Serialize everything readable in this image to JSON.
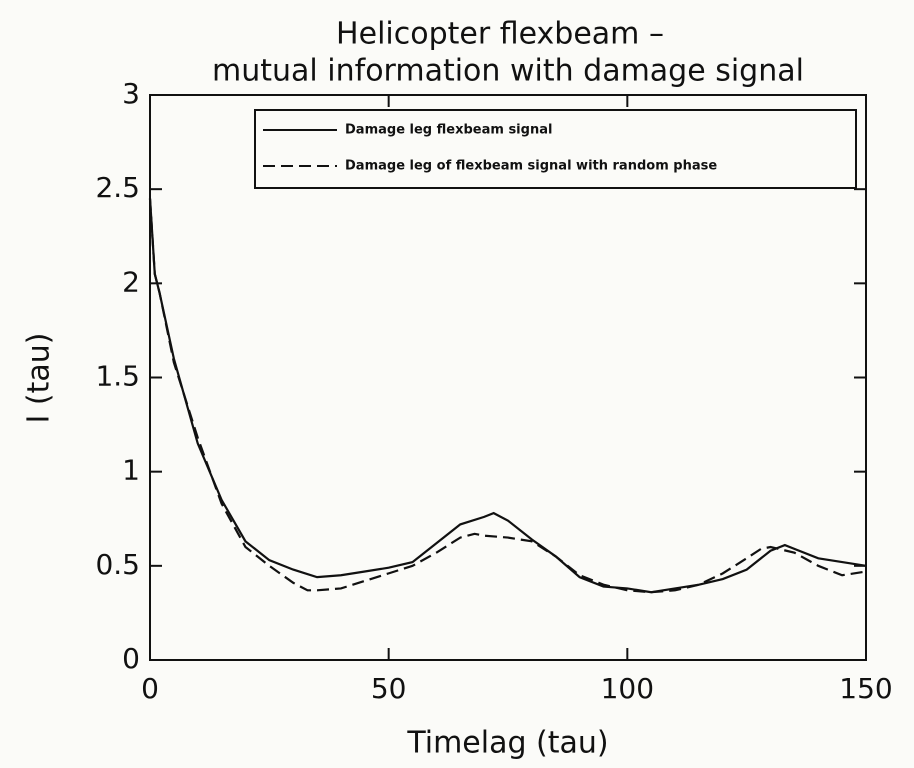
{
  "chart_data": {
    "type": "line",
    "title": [
      "Helicopter flexbeam –",
      "mutual information with damage signal"
    ],
    "x_label": "Timelag (tau)",
    "y_label": "I (tau)",
    "xlim": [
      0,
      150
    ],
    "ylim": [
      0,
      3
    ],
    "xticks": [
      0,
      50,
      100,
      150
    ],
    "yticks": [
      0,
      0.5,
      1,
      1.5,
      2,
      2.5,
      3
    ],
    "grid": false,
    "legend": "upper-right",
    "series": [
      {
        "name": "Damage leg flexbeam signal",
        "color": "#111111",
        "dash": "solid",
        "x": [
          0,
          1,
          2,
          5,
          10,
          15,
          20,
          25,
          30,
          35,
          40,
          45,
          50,
          55,
          60,
          65,
          70,
          72,
          75,
          80,
          85,
          90,
          95,
          100,
          105,
          110,
          115,
          120,
          125,
          130,
          133,
          135,
          140,
          145,
          150
        ],
        "values": [
          2.45,
          2.05,
          1.95,
          1.6,
          1.15,
          0.85,
          0.63,
          0.53,
          0.48,
          0.44,
          0.45,
          0.47,
          0.49,
          0.52,
          0.62,
          0.72,
          0.76,
          0.78,
          0.74,
          0.64,
          0.55,
          0.44,
          0.39,
          0.38,
          0.36,
          0.38,
          0.4,
          0.43,
          0.48,
          0.58,
          0.61,
          0.59,
          0.54,
          0.52,
          0.5
        ]
      },
      {
        "name": "Damage leg of flexbeam signal with random phase",
        "color": "#111111",
        "dash": "dashed",
        "x": [
          0,
          1,
          2,
          5,
          10,
          15,
          20,
          25,
          30,
          33,
          35,
          40,
          45,
          50,
          55,
          60,
          65,
          68,
          70,
          75,
          80,
          85,
          90,
          95,
          100,
          105,
          110,
          115,
          120,
          125,
          128,
          130,
          135,
          140,
          145,
          150
        ],
        "values": [
          2.45,
          2.05,
          1.95,
          1.58,
          1.18,
          0.83,
          0.6,
          0.5,
          0.41,
          0.37,
          0.37,
          0.38,
          0.42,
          0.46,
          0.5,
          0.57,
          0.65,
          0.67,
          0.66,
          0.65,
          0.63,
          0.55,
          0.45,
          0.4,
          0.37,
          0.36,
          0.37,
          0.4,
          0.46,
          0.54,
          0.59,
          0.6,
          0.57,
          0.5,
          0.45,
          0.47
        ]
      }
    ]
  }
}
